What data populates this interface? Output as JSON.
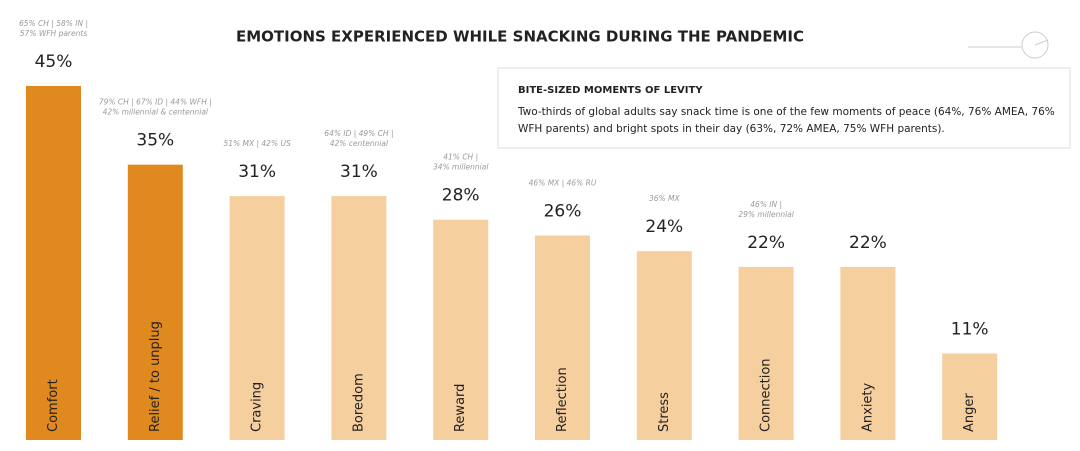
{
  "chart_data": {
    "type": "bar",
    "title": "EMOTIONS EXPERIENCED WHILE SNACKING DURING THE PANDEMIC",
    "categories": [
      "Comfort",
      "Relief / to unplug",
      "Craving",
      "Boredom",
      "Reward",
      "Reflection",
      "Stress",
      "Connection",
      "Anxiety",
      "Anger"
    ],
    "values": [
      45,
      35,
      31,
      31,
      28,
      26,
      24,
      22,
      22,
      11
    ],
    "value_labels": [
      "45%",
      "35%",
      "31%",
      "31%",
      "28%",
      "26%",
      "24%",
      "22%",
      "22%",
      "11%"
    ],
    "colors": [
      "#e0891f",
      "#e0891f",
      "#f6cf9f",
      "#f6cf9f",
      "#f6cf9f",
      "#f6cf9f",
      "#f6cf9f",
      "#f6cf9f",
      "#f6cf9f",
      "#f6cf9f"
    ],
    "annotations": [
      [
        "65% CH | 58% IN |",
        "57% WFH parents"
      ],
      [
        "79% CH | 67% ID | 44% WFH |",
        "42% millennial & centennial"
      ],
      [
        "51% MX | 42% US"
      ],
      [
        "64% ID | 49% CH |",
        "42% centennial"
      ],
      [
        "41% CH |",
        "34% millennial"
      ],
      [
        "46% MX | 46% RU"
      ],
      [
        "36% MX"
      ],
      [
        "46% IN |",
        "29% millennial"
      ],
      null,
      null
    ],
    "ylim": [
      0,
      45
    ],
    "grid": false,
    "callout": {
      "title": "BITE-SIZED MOMENTS OF LEVITY",
      "lines": [
        "Two-thirds of global adults say snack time is one of the few moments of peace (64%, 76% AMEA, 76%",
        "WFH parents) and bright spots in their day (63%, 72% AMEA, 75% WFH parents)."
      ]
    }
  }
}
